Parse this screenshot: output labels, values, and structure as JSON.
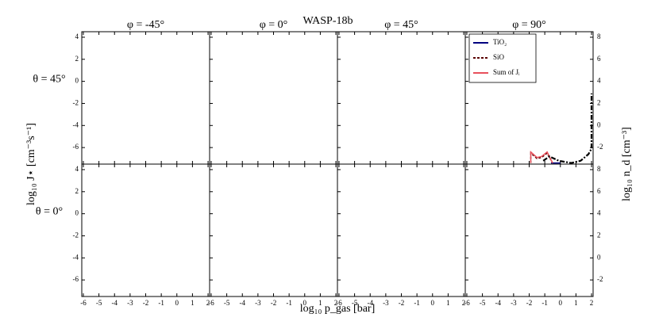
{
  "chart_data": {
    "type": "line",
    "title": "WASP-18b",
    "column_titles": [
      "φ = -45°",
      "φ = 0°",
      "φ = 45°",
      "φ = 90°"
    ],
    "row_titles": [
      "θ = 45°",
      "θ = 0°"
    ],
    "xlabel": "log₁₀ p_gas [bar]",
    "ylabel": "log₁₀ J⋆ [cm⁻³s⁻¹]",
    "y2label": "log₁₀ n_d [cm⁻³]",
    "xlim": [
      -6.1,
      2.1
    ],
    "xticks": [
      -6,
      -5,
      -4,
      -3,
      -2,
      -1,
      0,
      1,
      2
    ],
    "ylim": [
      -7.5,
      4.5
    ],
    "yticks": [
      -6,
      -4,
      -2,
      0,
      2,
      4
    ],
    "y2lim": [
      -3.5,
      8.5
    ],
    "y2ticks": [
      -2,
      0,
      2,
      4,
      6,
      8
    ],
    "legend": "upper right",
    "series": [
      {
        "name": "TiO₂",
        "color": "#00007f",
        "style": "solid",
        "x": [
          -0.6,
          -0.3,
          0
        ],
        "values": [
          -7.4,
          -7.4,
          -7.4
        ]
      },
      {
        "name": "SiO",
        "color": "#5a0000",
        "style": "dashed",
        "x": [
          -1.9,
          -1.9,
          -1.5,
          -1.2,
          -0.85,
          -0.5
        ],
        "values": [
          -7.4,
          -6.5,
          -7.0,
          -6.9,
          -6.5,
          -7.4
        ]
      },
      {
        "name": "Sum of Jᵢ",
        "color": "#e8505b",
        "style": "solid",
        "x": [
          -1.9,
          -1.9,
          -1.5,
          -1.2,
          -0.85,
          -0.5
        ],
        "values": [
          -7.4,
          -6.4,
          -6.9,
          -6.8,
          -6.4,
          -7.4
        ]
      },
      {
        "color": "#000000",
        "style": "dashdot",
        "axis": "y2",
        "x": [
          -1.1,
          -0.7,
          -0.1,
          0.7,
          1.3,
          1.8,
          2.0,
          2.0
        ],
        "values": [
          -3.2,
          -2.8,
          -3.2,
          -3.4,
          -3.2,
          -2.6,
          -2.1,
          2.9
        ]
      }
    ]
  }
}
